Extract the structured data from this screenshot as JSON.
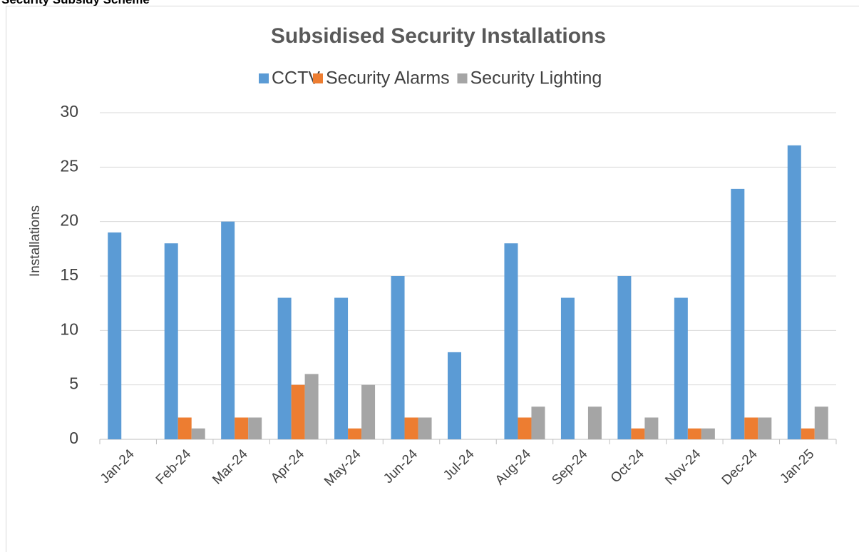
{
  "header": {
    "title": "Security Subsidy Scheme"
  },
  "chart_data": {
    "type": "bar",
    "title": "Subsidised Security Installations",
    "ylabel": "Installations",
    "categories": [
      "Jan-24",
      "Feb-24",
      "Mar-24",
      "Apr-24",
      "May-24",
      "Jun-24",
      "Jul-24",
      "Aug-24",
      "Sep-24",
      "Oct-24",
      "Nov-24",
      "Dec-24",
      "Jan-25"
    ],
    "series": [
      {
        "name": "CCTV",
        "color": "#5b9bd5",
        "values": [
          19,
          18,
          20,
          13,
          13,
          15,
          8,
          18,
          13,
          15,
          13,
          23,
          27
        ]
      },
      {
        "name": "Security Alarms",
        "color": "#ed7d31",
        "values": [
          0,
          2,
          2,
          5,
          1,
          2,
          0,
          2,
          0,
          1,
          1,
          2,
          1
        ]
      },
      {
        "name": "Security Lighting",
        "color": "#a5a5a5",
        "values": [
          0,
          1,
          2,
          6,
          5,
          2,
          0,
          3,
          3,
          2,
          1,
          2,
          3
        ]
      }
    ],
    "ylim": [
      0,
      30
    ],
    "yticks": [
      0,
      5,
      10,
      15,
      20,
      25,
      30
    ],
    "grid": true,
    "legend": "top"
  }
}
